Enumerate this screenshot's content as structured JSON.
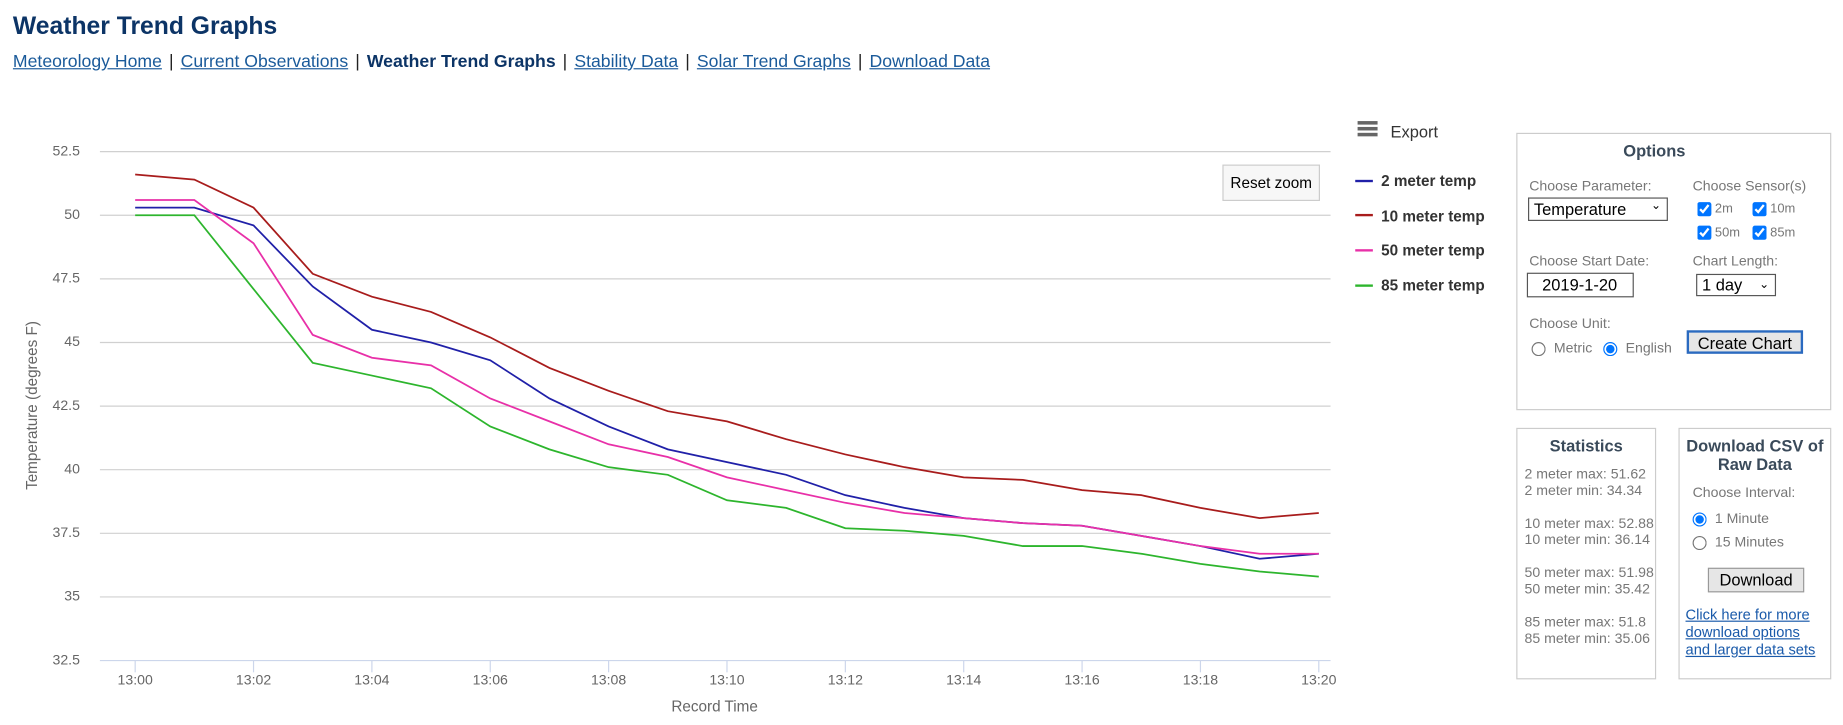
{
  "header": {
    "title": "Weather Trend Graphs"
  },
  "nav": {
    "items": [
      "Meteorology Home",
      "Current Observations",
      "Weather Trend Graphs",
      "Stability Data",
      "Solar Trend Graphs",
      "Download Data"
    ],
    "current": 2,
    "separator": "|"
  },
  "controls": {
    "reset_zoom": "Reset zoom",
    "export": "Export"
  },
  "chart_data": {
    "type": "line",
    "x_label": "Record Time",
    "y_label": "Temperature (degrees F)",
    "categories": [
      "13:00",
      null,
      "13:02",
      null,
      "13:04",
      null,
      "13:06",
      null,
      "13:08",
      null,
      "13:10",
      null,
      "13:12",
      null,
      "13:14",
      null,
      "13:16",
      null,
      "13:18",
      null,
      "13:20"
    ],
    "series": [
      {
        "name": "2 meter temp",
        "color": "#2020a8",
        "values": [
          50.3,
          50.3,
          49.6,
          47.2,
          45.5,
          45.0,
          44.3,
          42.8,
          41.7,
          40.8,
          40.3,
          39.8,
          39.0,
          38.5,
          38.1,
          37.9,
          37.8,
          37.4,
          37.0,
          36.5,
          36.7
        ]
      },
      {
        "name": "10 meter temp",
        "color": "#a81c1c",
        "values": [
          51.6,
          51.4,
          50.3,
          47.7,
          46.8,
          46.2,
          45.2,
          44.0,
          43.1,
          42.3,
          41.9,
          41.2,
          40.6,
          40.1,
          39.7,
          39.6,
          39.2,
          39.0,
          38.5,
          38.1,
          38.3
        ]
      },
      {
        "name": "50 meter temp",
        "color": "#e830a8",
        "values": [
          50.6,
          50.6,
          48.9,
          45.3,
          44.4,
          44.1,
          42.8,
          41.9,
          41.0,
          40.5,
          39.7,
          39.2,
          38.7,
          38.3,
          38.1,
          37.9,
          37.8,
          37.4,
          37.0,
          36.7,
          36.7
        ]
      },
      {
        "name": "85 meter temp",
        "color": "#2db52d",
        "values": [
          50.0,
          50.0,
          47.1,
          44.2,
          43.7,
          43.2,
          41.7,
          40.8,
          40.1,
          39.8,
          38.8,
          38.5,
          37.7,
          37.6,
          37.4,
          37.0,
          37.0,
          36.7,
          36.3,
          36.0,
          35.8
        ]
      }
    ],
    "ylim": [
      32.5,
      52.5
    ],
    "yticks": [
      32.5,
      35,
      37.5,
      40,
      42.5,
      45,
      47.5,
      50,
      52.5
    ],
    "grid": true,
    "legend": "right"
  },
  "options": {
    "title": "Options",
    "parameter_label": "Choose Parameter:",
    "parameter": "Temperature",
    "sensors_label": "Choose Sensor(s)",
    "sensors": [
      "2m",
      "10m",
      "50m",
      "85m"
    ],
    "start_date_label": "Choose Start Date:",
    "start_date": "2019-1-20",
    "length_label": "Chart Length:",
    "length": "1 day",
    "unit_label": "Choose Unit:",
    "units": [
      "Metric",
      "English"
    ],
    "selected_unit": 1,
    "create": "Create Chart"
  },
  "statistics": {
    "title": "Statistics",
    "groups": [
      [
        "2 meter max: 51.62",
        "2 meter min: 34.34"
      ],
      [
        "10 meter max: 52.88",
        "10 meter min: 36.14"
      ],
      [
        "50 meter max: 51.98",
        "50 meter min: 35.42"
      ],
      [
        "85 meter max: 51.8",
        "85 meter min: 35.06"
      ]
    ]
  },
  "download": {
    "title": "Download CSV of Raw Data",
    "interval_label": "Choose Interval:",
    "intervals": [
      "1 Minute",
      "15 Minutes"
    ],
    "selected_interval": 0,
    "button": "Download",
    "link": "Click here for more download options and larger data sets"
  }
}
